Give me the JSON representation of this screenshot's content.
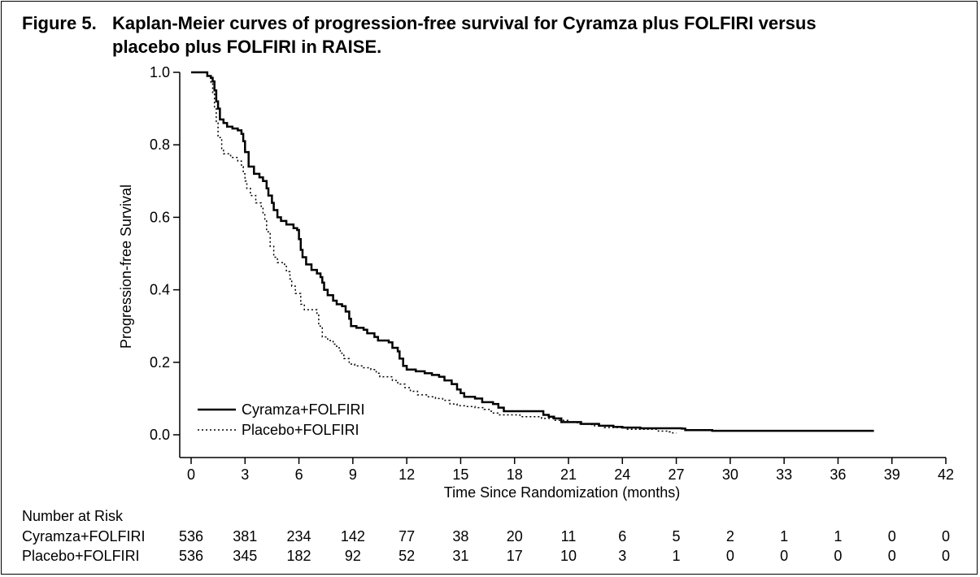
{
  "figure": {
    "title_number": "Figure 5.",
    "title_line1": "Kaplan-Meier curves of progression-free survival for Cyramza plus FOLFIRI versus",
    "title_line2": "placebo plus FOLFIRI in RAISE."
  },
  "chart_data": {
    "type": "line",
    "step": true,
    "xlabel": "Time Since Randomization (months)",
    "ylabel": "Progression-free Survival",
    "xlim": [
      0,
      42
    ],
    "ylim": [
      0,
      1
    ],
    "x_ticks": [
      "0",
      "3",
      "6",
      "9",
      "12",
      "15",
      "18",
      "21",
      "24",
      "27",
      "30",
      "33",
      "36",
      "39",
      "42"
    ],
    "y_ticks": [
      "0.0",
      "0.2",
      "0.4",
      "0.6",
      "0.8",
      "1.0"
    ],
    "grid": false,
    "legend_position": "bottom-left",
    "series": [
      {
        "name": "Cyramza+FOLFIRI",
        "line_style": "solid",
        "color": "#000000",
        "points": [
          [
            0,
            1.0
          ],
          [
            0.6,
            1.0
          ],
          [
            0.9,
            0.99
          ],
          [
            1.1,
            0.985
          ],
          [
            1.2,
            0.975
          ],
          [
            1.3,
            0.95
          ],
          [
            1.4,
            0.92
          ],
          [
            1.5,
            0.9
          ],
          [
            1.6,
            0.87
          ],
          [
            1.8,
            0.86
          ],
          [
            2.0,
            0.85
          ],
          [
            2.3,
            0.845
          ],
          [
            2.6,
            0.84
          ],
          [
            2.8,
            0.83
          ],
          [
            2.9,
            0.81
          ],
          [
            3.0,
            0.78
          ],
          [
            3.2,
            0.74
          ],
          [
            3.5,
            0.72
          ],
          [
            3.8,
            0.71
          ],
          [
            4.0,
            0.7
          ],
          [
            4.2,
            0.68
          ],
          [
            4.3,
            0.66
          ],
          [
            4.5,
            0.64
          ],
          [
            4.6,
            0.62
          ],
          [
            4.8,
            0.6
          ],
          [
            5.0,
            0.59
          ],
          [
            5.3,
            0.58
          ],
          [
            5.7,
            0.57
          ],
          [
            5.9,
            0.565
          ],
          [
            6.0,
            0.54
          ],
          [
            6.1,
            0.51
          ],
          [
            6.2,
            0.49
          ],
          [
            6.4,
            0.47
          ],
          [
            6.7,
            0.455
          ],
          [
            7.0,
            0.445
          ],
          [
            7.2,
            0.435
          ],
          [
            7.3,
            0.42
          ],
          [
            7.4,
            0.4
          ],
          [
            7.6,
            0.385
          ],
          [
            7.9,
            0.37
          ],
          [
            8.1,
            0.36
          ],
          [
            8.4,
            0.355
          ],
          [
            8.6,
            0.34
          ],
          [
            8.8,
            0.32
          ],
          [
            8.9,
            0.3
          ],
          [
            9.2,
            0.295
          ],
          [
            9.6,
            0.29
          ],
          [
            9.8,
            0.28
          ],
          [
            10.2,
            0.27
          ],
          [
            10.4,
            0.26
          ],
          [
            11.0,
            0.255
          ],
          [
            11.2,
            0.24
          ],
          [
            11.5,
            0.23
          ],
          [
            11.6,
            0.21
          ],
          [
            11.8,
            0.19
          ],
          [
            12.0,
            0.18
          ],
          [
            12.5,
            0.175
          ],
          [
            13.0,
            0.17
          ],
          [
            13.4,
            0.165
          ],
          [
            13.8,
            0.16
          ],
          [
            14.1,
            0.15
          ],
          [
            14.5,
            0.14
          ],
          [
            14.8,
            0.125
          ],
          [
            15.0,
            0.115
          ],
          [
            15.2,
            0.105
          ],
          [
            15.8,
            0.1
          ],
          [
            16.2,
            0.09
          ],
          [
            16.8,
            0.085
          ],
          [
            17.1,
            0.075
          ],
          [
            17.4,
            0.065
          ],
          [
            19.3,
            0.065
          ],
          [
            19.6,
            0.055
          ],
          [
            19.9,
            0.05
          ],
          [
            20.2,
            0.045
          ],
          [
            20.6,
            0.035
          ],
          [
            21.2,
            0.035
          ],
          [
            21.7,
            0.03
          ],
          [
            22.7,
            0.025
          ],
          [
            23.5,
            0.022
          ],
          [
            24.0,
            0.02
          ],
          [
            25.0,
            0.018
          ],
          [
            27.3,
            0.017
          ],
          [
            27.5,
            0.013
          ],
          [
            29.0,
            0.011
          ],
          [
            38.0,
            0.011
          ]
        ]
      },
      {
        "name": "Placebo+FOLFIRI",
        "line_style": "dotted",
        "color": "#000000",
        "points": [
          [
            0,
            1.0
          ],
          [
            0.6,
            1.0
          ],
          [
            0.9,
            0.99
          ],
          [
            1.1,
            0.97
          ],
          [
            1.2,
            0.94
          ],
          [
            1.3,
            0.9
          ],
          [
            1.4,
            0.86
          ],
          [
            1.5,
            0.82
          ],
          [
            1.7,
            0.79
          ],
          [
            1.8,
            0.775
          ],
          [
            2.2,
            0.765
          ],
          [
            2.6,
            0.755
          ],
          [
            2.8,
            0.74
          ],
          [
            2.9,
            0.72
          ],
          [
            3.0,
            0.7
          ],
          [
            3.1,
            0.68
          ],
          [
            3.3,
            0.66
          ],
          [
            3.6,
            0.64
          ],
          [
            3.9,
            0.63
          ],
          [
            4.0,
            0.61
          ],
          [
            4.1,
            0.59
          ],
          [
            4.2,
            0.56
          ],
          [
            4.4,
            0.52
          ],
          [
            4.6,
            0.49
          ],
          [
            4.8,
            0.475
          ],
          [
            5.2,
            0.465
          ],
          [
            5.3,
            0.45
          ],
          [
            5.5,
            0.43
          ],
          [
            5.6,
            0.41
          ],
          [
            5.8,
            0.39
          ],
          [
            6.1,
            0.36
          ],
          [
            6.3,
            0.345
          ],
          [
            6.9,
            0.345
          ],
          [
            7.0,
            0.33
          ],
          [
            7.1,
            0.3
          ],
          [
            7.3,
            0.27
          ],
          [
            7.6,
            0.26
          ],
          [
            7.9,
            0.25
          ],
          [
            8.1,
            0.24
          ],
          [
            8.3,
            0.225
          ],
          [
            8.5,
            0.21
          ],
          [
            8.8,
            0.195
          ],
          [
            9.1,
            0.19
          ],
          [
            9.6,
            0.185
          ],
          [
            10.0,
            0.18
          ],
          [
            10.3,
            0.17
          ],
          [
            10.5,
            0.16
          ],
          [
            11.0,
            0.16
          ],
          [
            11.2,
            0.15
          ],
          [
            11.5,
            0.14
          ],
          [
            11.9,
            0.13
          ],
          [
            12.2,
            0.12
          ],
          [
            12.6,
            0.11
          ],
          [
            13.1,
            0.105
          ],
          [
            13.6,
            0.1
          ],
          [
            14.0,
            0.095
          ],
          [
            14.4,
            0.085
          ],
          [
            14.8,
            0.08
          ],
          [
            15.3,
            0.078
          ],
          [
            15.8,
            0.075
          ],
          [
            16.3,
            0.07
          ],
          [
            16.7,
            0.06
          ],
          [
            17.1,
            0.055
          ],
          [
            18.3,
            0.05
          ],
          [
            19.2,
            0.05
          ],
          [
            19.5,
            0.045
          ],
          [
            20.2,
            0.04
          ],
          [
            21.0,
            0.035
          ],
          [
            21.5,
            0.03
          ],
          [
            22.3,
            0.025
          ],
          [
            23.0,
            0.02
          ],
          [
            24.2,
            0.015
          ],
          [
            26.0,
            0.01
          ],
          [
            26.6,
            0.008
          ],
          [
            26.8,
            0.005
          ],
          [
            27.0,
            0.005
          ]
        ]
      }
    ]
  },
  "risk_table": {
    "heading": "Number at Risk",
    "times": [
      0,
      3,
      6,
      9,
      12,
      15,
      18,
      21,
      24,
      27,
      30,
      33,
      36,
      39,
      42
    ],
    "rows": [
      {
        "label": "Cyramza+FOLFIRI",
        "values": [
          "536",
          "381",
          "234",
          "142",
          "77",
          "38",
          "20",
          "11",
          "6",
          "5",
          "2",
          "1",
          "1",
          "0",
          "0"
        ]
      },
      {
        "label": "Placebo+FOLFIRI",
        "values": [
          "536",
          "345",
          "182",
          "92",
          "52",
          "31",
          "17",
          "10",
          "3",
          "1",
          "0",
          "0",
          "0",
          "0",
          "0"
        ]
      }
    ]
  }
}
